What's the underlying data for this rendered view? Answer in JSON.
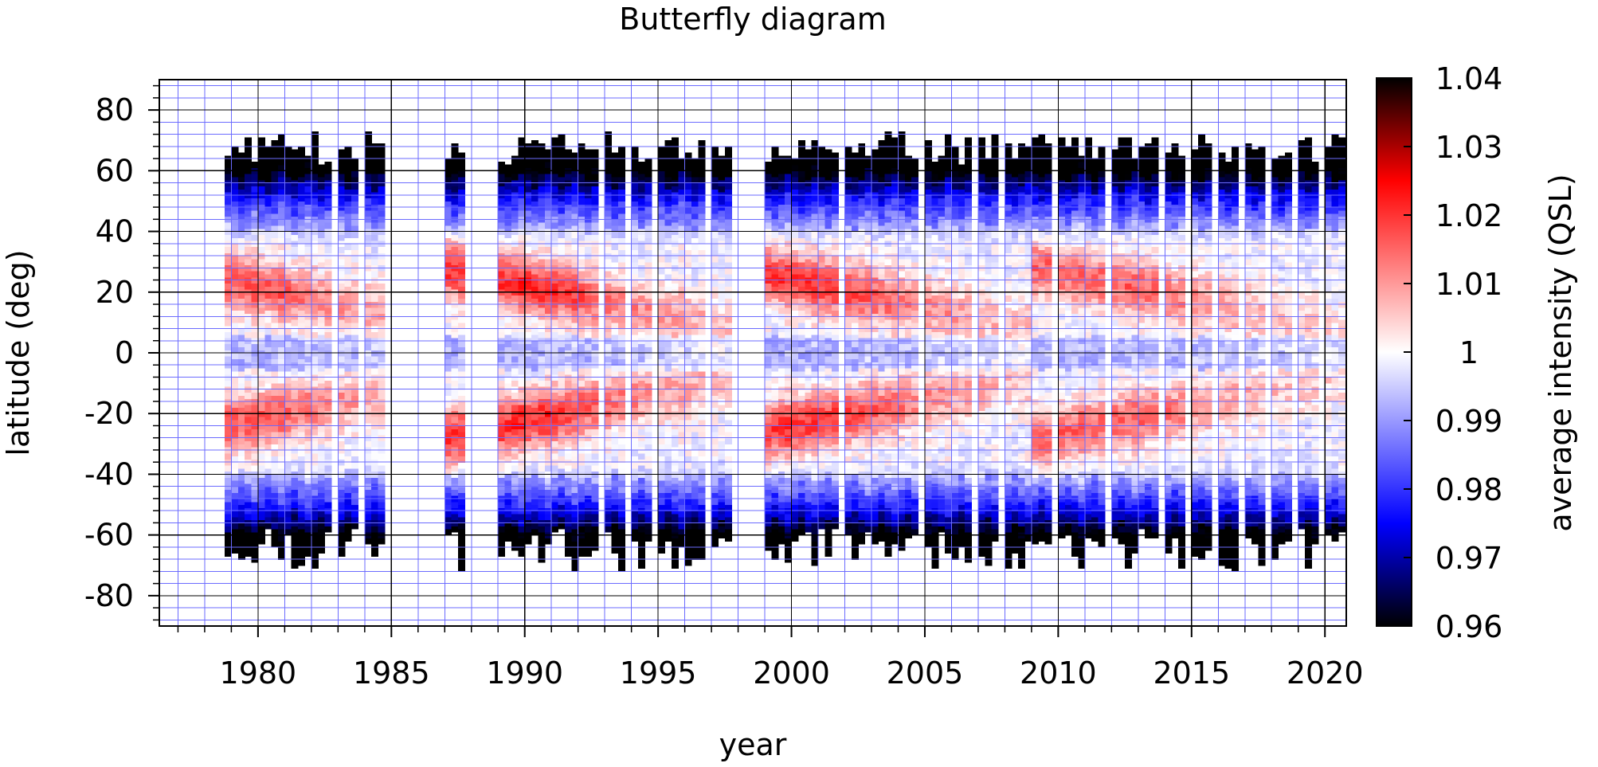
{
  "chart_data": {
    "type": "heatmap",
    "title": "Butterfly diagram",
    "xlabel": "year",
    "ylabel": "latitude (deg)",
    "xlim": [
      1976.3,
      2020.8
    ],
    "ylim": [
      -90,
      90
    ],
    "x_ticks": [
      1980,
      1985,
      1990,
      1995,
      2000,
      2005,
      2010,
      2015,
      2020
    ],
    "y_ticks": [
      80,
      60,
      40,
      20,
      0,
      -20,
      -40,
      -60,
      -80
    ],
    "grid": true,
    "grid_color": "#6b6bff",
    "colorbar": {
      "label": "average intensity (QSL)",
      "range": [
        0.96,
        1.04
      ],
      "ticks": [
        1.04,
        1.03,
        1.02,
        1.01,
        1,
        0.99,
        0.98,
        0.97,
        0.96
      ],
      "colormap": [
        {
          "value": 0.96,
          "color": "#000000"
        },
        {
          "value": 0.975,
          "color": "#0000ff"
        },
        {
          "value": 1.0,
          "color": "#ffffff"
        },
        {
          "value": 1.025,
          "color": "#ff0000"
        },
        {
          "value": 1.04,
          "color": "#000000"
        }
      ]
    },
    "cell_size": {
      "year": 0.25,
      "lat": 2.0
    },
    "data_years": [
      [
        1978.75,
        1985.0
      ],
      [
        1986.75,
        1987.75
      ],
      [
        1989.0,
        1998.0
      ],
      [
        1999.0,
        2020.75
      ]
    ],
    "latitude_coverage": [
      {
        "year": 1980,
        "lat_min": -70,
        "lat_max": 72
      },
      {
        "year": 1990,
        "lat_min": -72,
        "lat_max": 72
      },
      {
        "year": 2000,
        "lat_min": -72,
        "lat_max": 72
      },
      {
        "year": 2015,
        "lat_min": -72,
        "lat_max": 72
      }
    ],
    "features": [
      {
        "description": "Strong intensity near +/-20 deg lat (~1.015 to 1.03) early in each cycle, migrating toward the equator",
        "years": [
          1989,
          1995
        ]
      },
      {
        "description": "Strong intensity near +/-20 deg lat, migrating toward the equator",
        "years": [
          1999,
          2007
        ]
      },
      {
        "description": "Strong intensity near +/-15 deg lat, migrating toward the equator",
        "years": [
          2010,
          2020
        ]
      },
      {
        "description": "Low intensity (~0.96 to 0.98) poleward of +/-50 deg",
        "years": [
          1978,
          2020
        ]
      }
    ]
  }
}
